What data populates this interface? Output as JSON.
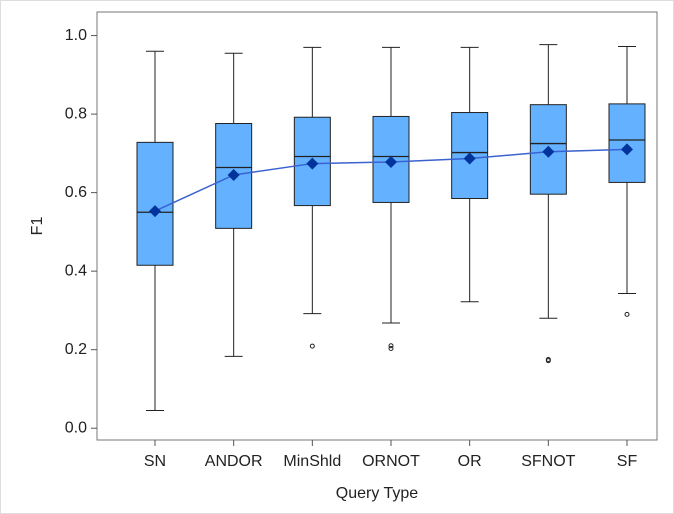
{
  "chart_data": {
    "type": "box",
    "x_label": "Query Type",
    "y_label": "F1",
    "categories": [
      "SN",
      "ANDOR",
      "MinShld",
      "ORNOT",
      "OR",
      "SFNOT",
      "SF"
    ],
    "boxes": [
      {
        "min": 0.045,
        "q1": 0.415,
        "median": 0.55,
        "q3": 0.728,
        "max": 0.96,
        "mean": 0.553,
        "outliers": []
      },
      {
        "min": 0.183,
        "q1": 0.509,
        "median": 0.664,
        "q3": 0.776,
        "max": 0.955,
        "mean": 0.645,
        "outliers": []
      },
      {
        "min": 0.292,
        "q1": 0.567,
        "median": 0.692,
        "q3": 0.792,
        "max": 0.97,
        "mean": 0.674,
        "outliers": [
          0.209
        ]
      },
      {
        "min": 0.268,
        "q1": 0.575,
        "median": 0.692,
        "q3": 0.794,
        "max": 0.97,
        "mean": 0.678,
        "outliers": [
          0.21,
          0.203
        ]
      },
      {
        "min": 0.322,
        "q1": 0.585,
        "median": 0.702,
        "q3": 0.804,
        "max": 0.97,
        "mean": 0.687,
        "outliers": []
      },
      {
        "min": 0.28,
        "q1": 0.596,
        "median": 0.725,
        "q3": 0.824,
        "max": 0.977,
        "mean": 0.704,
        "outliers": [
          0.175,
          0.172
        ]
      },
      {
        "min": 0.343,
        "q1": 0.626,
        "median": 0.734,
        "q3": 0.826,
        "max": 0.972,
        "mean": 0.71,
        "outliers": [
          0.29
        ]
      }
    ],
    "box_color": "#63b1ff",
    "mean_color": "#00349c",
    "mean_line_color": "#3a62d0",
    "ylim": [
      -0.03,
      1.06
    ],
    "yticks": [
      {
        "value": 0,
        "label": "0.0"
      },
      0.2,
      0.4,
      0.6,
      0.8,
      {
        "value": 1,
        "label": "1.0"
      }
    ]
  }
}
